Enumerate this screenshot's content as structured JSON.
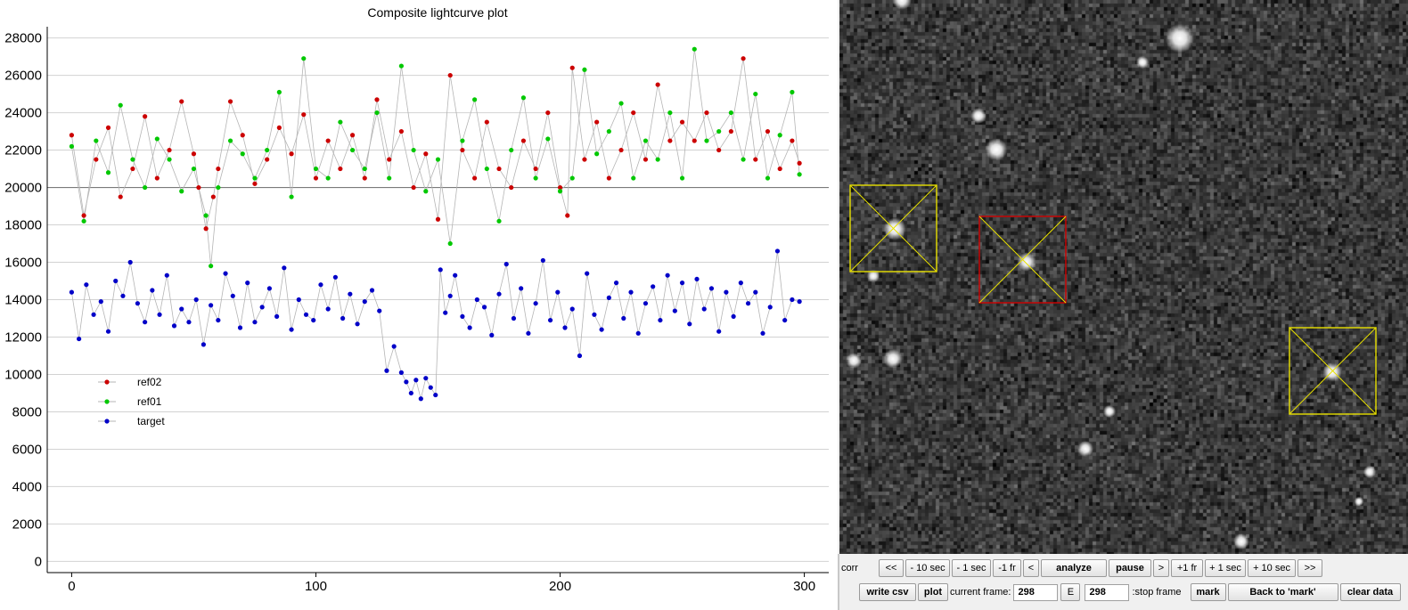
{
  "chart_data": {
    "type": "scatter",
    "title": "Composite lightcurve plot",
    "xlabel": "",
    "ylabel": "",
    "xlim": [
      -10,
      310
    ],
    "ylim": [
      -600,
      28600
    ],
    "x_ticks": [
      0,
      100,
      200,
      300
    ],
    "y_ticks": [
      0,
      2000,
      4000,
      6000,
      8000,
      10000,
      12000,
      14000,
      16000,
      18000,
      20000,
      22000,
      24000,
      26000,
      28000
    ],
    "grid": true,
    "reference_line": 20000,
    "legend_position": "center-left",
    "series": [
      {
        "name": "ref02",
        "color": "#cc0000",
        "x": [
          0,
          5,
          10,
          15,
          20,
          25,
          30,
          35,
          40,
          45,
          50,
          52,
          55,
          58,
          60,
          65,
          70,
          75,
          80,
          85,
          90,
          95,
          100,
          105,
          110,
          115,
          120,
          125,
          130,
          135,
          140,
          145,
          150,
          155,
          160,
          165,
          170,
          175,
          180,
          185,
          190,
          195,
          200,
          203,
          205,
          210,
          215,
          220,
          225,
          230,
          235,
          240,
          245,
          250,
          255,
          260,
          265,
          270,
          275,
          280,
          285,
          290,
          295,
          298
        ],
        "y": [
          22800,
          18500,
          21500,
          23200,
          19500,
          21000,
          23800,
          20500,
          22000,
          24600,
          21800,
          20000,
          17800,
          19500,
          21000,
          24600,
          22800,
          20200,
          21500,
          23200,
          21800,
          23900,
          20500,
          22500,
          21000,
          22800,
          20500,
          24700,
          21500,
          23000,
          20000,
          21800,
          18300,
          26000,
          22000,
          20500,
          23500,
          21000,
          20000,
          22500,
          21000,
          24000,
          20000,
          18500,
          26400,
          21500,
          23500,
          20500,
          22000,
          24000,
          21500,
          25500,
          22500,
          23500,
          22500,
          24000,
          22000,
          23000,
          26900,
          21500,
          23000,
          21000,
          22500,
          21300
        ]
      },
      {
        "name": "ref01",
        "color": "#00c800",
        "x": [
          0,
          5,
          10,
          15,
          20,
          25,
          30,
          35,
          40,
          45,
          50,
          55,
          57,
          60,
          65,
          70,
          75,
          80,
          85,
          90,
          95,
          100,
          105,
          110,
          115,
          120,
          125,
          130,
          135,
          140,
          145,
          150,
          155,
          160,
          165,
          170,
          175,
          180,
          185,
          190,
          195,
          200,
          205,
          210,
          215,
          220,
          225,
          230,
          235,
          240,
          245,
          250,
          255,
          260,
          265,
          270,
          275,
          280,
          285,
          290,
          295,
          298
        ],
        "y": [
          22200,
          18200,
          22500,
          20800,
          24400,
          21500,
          20000,
          22600,
          21500,
          19800,
          21000,
          18500,
          15800,
          20000,
          22500,
          21800,
          20500,
          22000,
          25100,
          19500,
          26900,
          21000,
          20500,
          23500,
          22000,
          21000,
          24000,
          20500,
          26500,
          22000,
          19800,
          21500,
          17000,
          22500,
          24700,
          21000,
          18200,
          22000,
          24800,
          20500,
          22600,
          19800,
          20500,
          26300,
          21800,
          23000,
          24500,
          20500,
          22500,
          21500,
          24000,
          20500,
          27400,
          22500,
          23000,
          24000,
          21500,
          25000,
          20500,
          22800,
          25100,
          20700
        ]
      },
      {
        "name": "target",
        "color": "#0000c8",
        "x": [
          0,
          3,
          6,
          9,
          12,
          15,
          18,
          21,
          24,
          27,
          30,
          33,
          36,
          39,
          42,
          45,
          48,
          51,
          54,
          57,
          60,
          63,
          66,
          69,
          72,
          75,
          78,
          81,
          84,
          87,
          90,
          93,
          96,
          99,
          102,
          105,
          108,
          111,
          114,
          117,
          120,
          123,
          126,
          129,
          132,
          135,
          137,
          139,
          141,
          143,
          145,
          147,
          149,
          151,
          153,
          155,
          157,
          160,
          163,
          166,
          169,
          172,
          175,
          178,
          181,
          184,
          187,
          190,
          193,
          196,
          199,
          202,
          205,
          208,
          211,
          214,
          217,
          220,
          223,
          226,
          229,
          232,
          235,
          238,
          241,
          244,
          247,
          250,
          253,
          256,
          259,
          262,
          265,
          268,
          271,
          274,
          277,
          280,
          283,
          286,
          289,
          292,
          295,
          298
        ],
        "y": [
          14400,
          11900,
          14800,
          13200,
          13900,
          12300,
          15000,
          14200,
          16000,
          13800,
          12800,
          14500,
          13200,
          15300,
          12600,
          13500,
          12800,
          14000,
          11600,
          13700,
          12900,
          15400,
          14200,
          12500,
          14900,
          12800,
          13600,
          14600,
          13100,
          15700,
          12400,
          14000,
          13200,
          12900,
          14800,
          13500,
          15200,
          13000,
          14300,
          12700,
          13900,
          14500,
          13400,
          10200,
          11500,
          10100,
          9600,
          9000,
          9700,
          8700,
          9800,
          9300,
          8900,
          15600,
          13300,
          14200,
          15300,
          13100,
          12500,
          14000,
          13600,
          12100,
          14300,
          15900,
          13000,
          14600,
          12200,
          13800,
          16100,
          12900,
          14400,
          12500,
          13500,
          11000,
          15400,
          13200,
          12400,
          14100,
          14900,
          13000,
          14400,
          12200,
          13800,
          14700,
          12900,
          15300,
          13400,
          14900,
          12700,
          15100,
          13500,
          14600,
          12300,
          14400,
          13100,
          14900,
          13800,
          14400,
          12200,
          13600,
          16600,
          12900,
          14000,
          13900
        ]
      }
    ]
  },
  "controls": {
    "row1": {
      "prefix": "corr",
      "buttons": [
        "<<",
        "- 10 sec",
        "- 1 sec",
        "-1 fr",
        "<",
        "analyze",
        "pause",
        ">",
        "+1 fr",
        "+ 1 sec",
        "+ 10 sec",
        ">>"
      ]
    },
    "row2": {
      "write_csv": "write csv",
      "plot": "plot",
      "current_frame_label": "current frame:",
      "current_frame_value": "298",
      "e_label": "E",
      "stop_frame_value": "298",
      "stop_frame_label": ":stop frame",
      "mark": "mark",
      "back_to_mark": "Back to 'mark'",
      "clear_data": "clear data"
    }
  },
  "overlay_colors": {
    "reference_box": "#e8e000",
    "target_box": "#d00000"
  }
}
